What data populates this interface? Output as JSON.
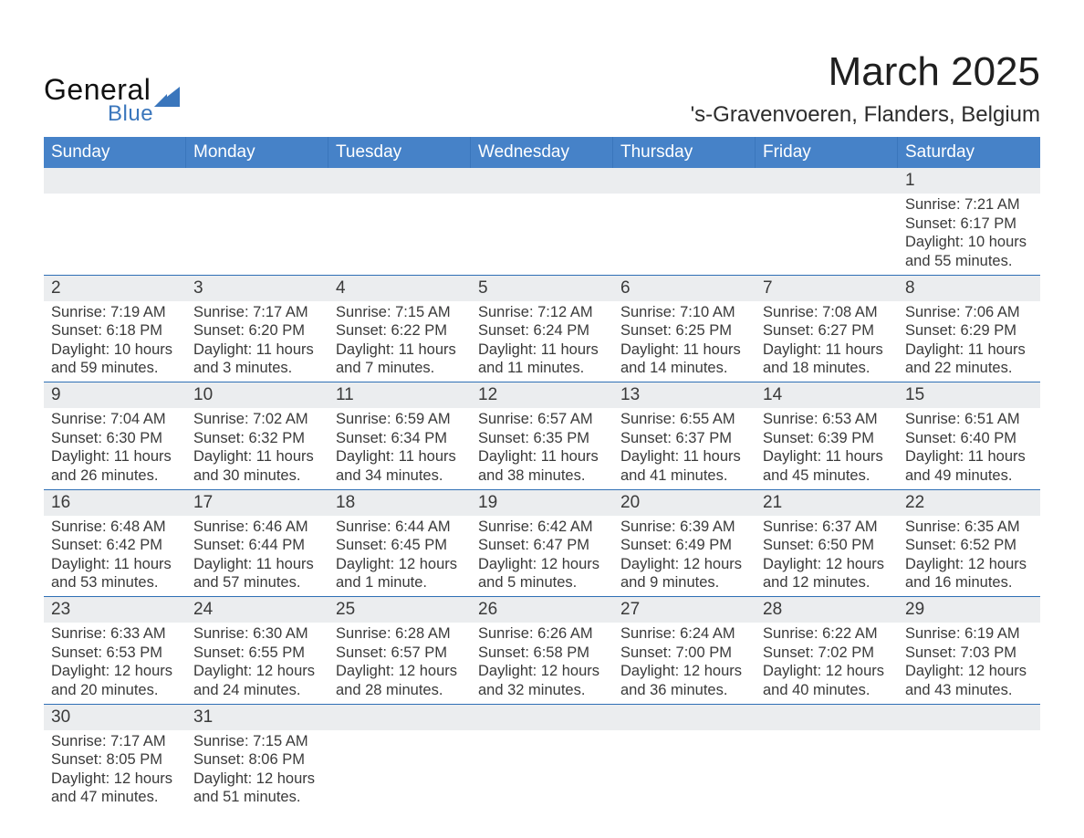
{
  "type": "table",
  "logo": {
    "line1": "General",
    "line2": "Blue"
  },
  "title": {
    "month": "March 2025",
    "location": "'s-Gravenvoeren, Flanders, Belgium"
  },
  "colors": {
    "header_bg": "#4682c8",
    "header_text": "#ffffff",
    "row_divider": "#2f6fb5",
    "daynum_bg": "#ebedef",
    "text": "#3a3a3a",
    "logo_blue": "#3a76bc",
    "page_bg": "#ffffff"
  },
  "typography": {
    "title_fontsize_pt": 33,
    "location_fontsize_pt": 18,
    "header_fontsize_pt": 14,
    "daynum_fontsize_pt": 14,
    "body_fontsize_pt": 12,
    "font_family": "Arial"
  },
  "columns": [
    "Sunday",
    "Monday",
    "Tuesday",
    "Wednesday",
    "Thursday",
    "Friday",
    "Saturday"
  ],
  "weeks": [
    [
      null,
      null,
      null,
      null,
      null,
      null,
      {
        "day": "1",
        "sunrise": "Sunrise: 7:21 AM",
        "sunset": "Sunset: 6:17 PM",
        "daylight1": "Daylight: 10 hours",
        "daylight2": "and 55 minutes."
      }
    ],
    [
      {
        "day": "2",
        "sunrise": "Sunrise: 7:19 AM",
        "sunset": "Sunset: 6:18 PM",
        "daylight1": "Daylight: 10 hours",
        "daylight2": "and 59 minutes."
      },
      {
        "day": "3",
        "sunrise": "Sunrise: 7:17 AM",
        "sunset": "Sunset: 6:20 PM",
        "daylight1": "Daylight: 11 hours",
        "daylight2": "and 3 minutes."
      },
      {
        "day": "4",
        "sunrise": "Sunrise: 7:15 AM",
        "sunset": "Sunset: 6:22 PM",
        "daylight1": "Daylight: 11 hours",
        "daylight2": "and 7 minutes."
      },
      {
        "day": "5",
        "sunrise": "Sunrise: 7:12 AM",
        "sunset": "Sunset: 6:24 PM",
        "daylight1": "Daylight: 11 hours",
        "daylight2": "and 11 minutes."
      },
      {
        "day": "6",
        "sunrise": "Sunrise: 7:10 AM",
        "sunset": "Sunset: 6:25 PM",
        "daylight1": "Daylight: 11 hours",
        "daylight2": "and 14 minutes."
      },
      {
        "day": "7",
        "sunrise": "Sunrise: 7:08 AM",
        "sunset": "Sunset: 6:27 PM",
        "daylight1": "Daylight: 11 hours",
        "daylight2": "and 18 minutes."
      },
      {
        "day": "8",
        "sunrise": "Sunrise: 7:06 AM",
        "sunset": "Sunset: 6:29 PM",
        "daylight1": "Daylight: 11 hours",
        "daylight2": "and 22 minutes."
      }
    ],
    [
      {
        "day": "9",
        "sunrise": "Sunrise: 7:04 AM",
        "sunset": "Sunset: 6:30 PM",
        "daylight1": "Daylight: 11 hours",
        "daylight2": "and 26 minutes."
      },
      {
        "day": "10",
        "sunrise": "Sunrise: 7:02 AM",
        "sunset": "Sunset: 6:32 PM",
        "daylight1": "Daylight: 11 hours",
        "daylight2": "and 30 minutes."
      },
      {
        "day": "11",
        "sunrise": "Sunrise: 6:59 AM",
        "sunset": "Sunset: 6:34 PM",
        "daylight1": "Daylight: 11 hours",
        "daylight2": "and 34 minutes."
      },
      {
        "day": "12",
        "sunrise": "Sunrise: 6:57 AM",
        "sunset": "Sunset: 6:35 PM",
        "daylight1": "Daylight: 11 hours",
        "daylight2": "and 38 minutes."
      },
      {
        "day": "13",
        "sunrise": "Sunrise: 6:55 AM",
        "sunset": "Sunset: 6:37 PM",
        "daylight1": "Daylight: 11 hours",
        "daylight2": "and 41 minutes."
      },
      {
        "day": "14",
        "sunrise": "Sunrise: 6:53 AM",
        "sunset": "Sunset: 6:39 PM",
        "daylight1": "Daylight: 11 hours",
        "daylight2": "and 45 minutes."
      },
      {
        "day": "15",
        "sunrise": "Sunrise: 6:51 AM",
        "sunset": "Sunset: 6:40 PM",
        "daylight1": "Daylight: 11 hours",
        "daylight2": "and 49 minutes."
      }
    ],
    [
      {
        "day": "16",
        "sunrise": "Sunrise: 6:48 AM",
        "sunset": "Sunset: 6:42 PM",
        "daylight1": "Daylight: 11 hours",
        "daylight2": "and 53 minutes."
      },
      {
        "day": "17",
        "sunrise": "Sunrise: 6:46 AM",
        "sunset": "Sunset: 6:44 PM",
        "daylight1": "Daylight: 11 hours",
        "daylight2": "and 57 minutes."
      },
      {
        "day": "18",
        "sunrise": "Sunrise: 6:44 AM",
        "sunset": "Sunset: 6:45 PM",
        "daylight1": "Daylight: 12 hours",
        "daylight2": "and 1 minute."
      },
      {
        "day": "19",
        "sunrise": "Sunrise: 6:42 AM",
        "sunset": "Sunset: 6:47 PM",
        "daylight1": "Daylight: 12 hours",
        "daylight2": "and 5 minutes."
      },
      {
        "day": "20",
        "sunrise": "Sunrise: 6:39 AM",
        "sunset": "Sunset: 6:49 PM",
        "daylight1": "Daylight: 12 hours",
        "daylight2": "and 9 minutes."
      },
      {
        "day": "21",
        "sunrise": "Sunrise: 6:37 AM",
        "sunset": "Sunset: 6:50 PM",
        "daylight1": "Daylight: 12 hours",
        "daylight2": "and 12 minutes."
      },
      {
        "day": "22",
        "sunrise": "Sunrise: 6:35 AM",
        "sunset": "Sunset: 6:52 PM",
        "daylight1": "Daylight: 12 hours",
        "daylight2": "and 16 minutes."
      }
    ],
    [
      {
        "day": "23",
        "sunrise": "Sunrise: 6:33 AM",
        "sunset": "Sunset: 6:53 PM",
        "daylight1": "Daylight: 12 hours",
        "daylight2": "and 20 minutes."
      },
      {
        "day": "24",
        "sunrise": "Sunrise: 6:30 AM",
        "sunset": "Sunset: 6:55 PM",
        "daylight1": "Daylight: 12 hours",
        "daylight2": "and 24 minutes."
      },
      {
        "day": "25",
        "sunrise": "Sunrise: 6:28 AM",
        "sunset": "Sunset: 6:57 PM",
        "daylight1": "Daylight: 12 hours",
        "daylight2": "and 28 minutes."
      },
      {
        "day": "26",
        "sunrise": "Sunrise: 6:26 AM",
        "sunset": "Sunset: 6:58 PM",
        "daylight1": "Daylight: 12 hours",
        "daylight2": "and 32 minutes."
      },
      {
        "day": "27",
        "sunrise": "Sunrise: 6:24 AM",
        "sunset": "Sunset: 7:00 PM",
        "daylight1": "Daylight: 12 hours",
        "daylight2": "and 36 minutes."
      },
      {
        "day": "28",
        "sunrise": "Sunrise: 6:22 AM",
        "sunset": "Sunset: 7:02 PM",
        "daylight1": "Daylight: 12 hours",
        "daylight2": "and 40 minutes."
      },
      {
        "day": "29",
        "sunrise": "Sunrise: 6:19 AM",
        "sunset": "Sunset: 7:03 PM",
        "daylight1": "Daylight: 12 hours",
        "daylight2": "and 43 minutes."
      }
    ],
    [
      {
        "day": "30",
        "sunrise": "Sunrise: 7:17 AM",
        "sunset": "Sunset: 8:05 PM",
        "daylight1": "Daylight: 12 hours",
        "daylight2": "and 47 minutes."
      },
      {
        "day": "31",
        "sunrise": "Sunrise: 7:15 AM",
        "sunset": "Sunset: 8:06 PM",
        "daylight1": "Daylight: 12 hours",
        "daylight2": "and 51 minutes."
      },
      null,
      null,
      null,
      null,
      null
    ]
  ]
}
